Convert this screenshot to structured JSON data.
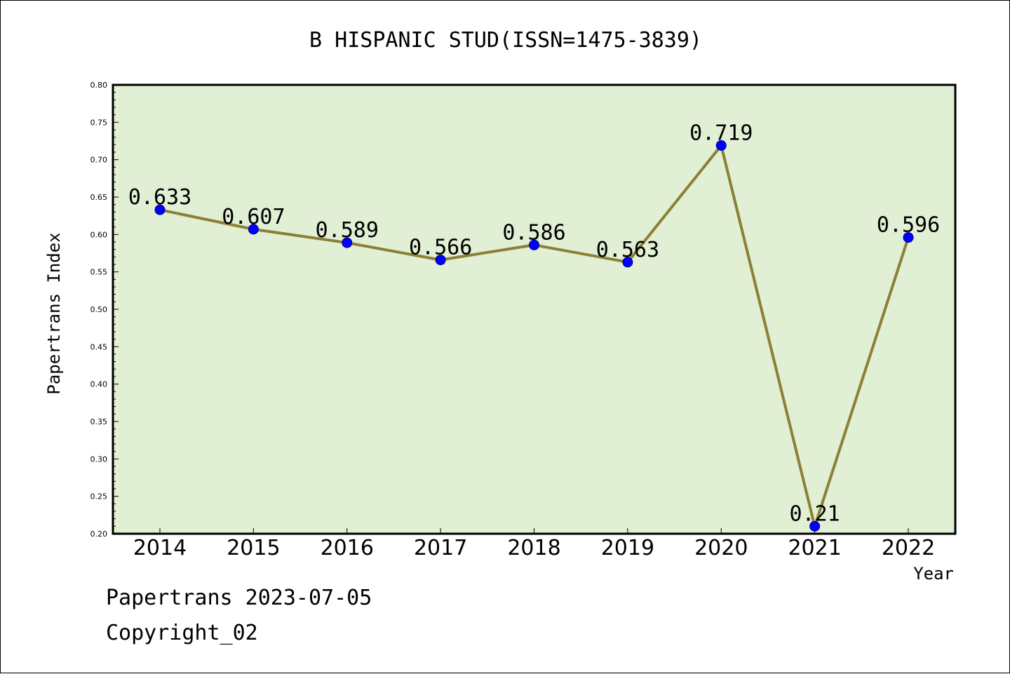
{
  "footer": {
    "source_line": "Papertrans 2023-07-05",
    "copyright_line": "Copyright_02"
  },
  "chart_data": {
    "type": "line",
    "title": "B HISPANIC STUD(ISSN=1475-3839)",
    "xlabel": "Year",
    "ylabel": "Papertrans Index",
    "categories": [
      "2014",
      "2015",
      "2016",
      "2017",
      "2018",
      "2019",
      "2020",
      "2021",
      "2022"
    ],
    "series": [
      {
        "values": [
          0.633,
          0.607,
          0.589,
          0.566,
          0.586,
          0.563,
          0.719,
          0.21,
          0.596
        ],
        "data_labels": [
          "0.633",
          "0.607",
          "0.589",
          "0.566",
          "0.586",
          "0.563",
          "0.719",
          "0.21",
          "0.596"
        ]
      }
    ],
    "ylim": [
      0.2,
      0.8
    ],
    "yticks": [
      "0.20",
      "0.25",
      "0.30",
      "0.35",
      "0.40",
      "0.45",
      "0.50",
      "0.55",
      "0.60",
      "0.65",
      "0.70",
      "0.75",
      "0.80"
    ],
    "grid": false,
    "legend": "none",
    "colors": {
      "plot_background": "#e1efd4",
      "line": "#8b8036",
      "marker": "#0000ff",
      "marker_edge": "#00008b",
      "axes": "#000000"
    }
  }
}
